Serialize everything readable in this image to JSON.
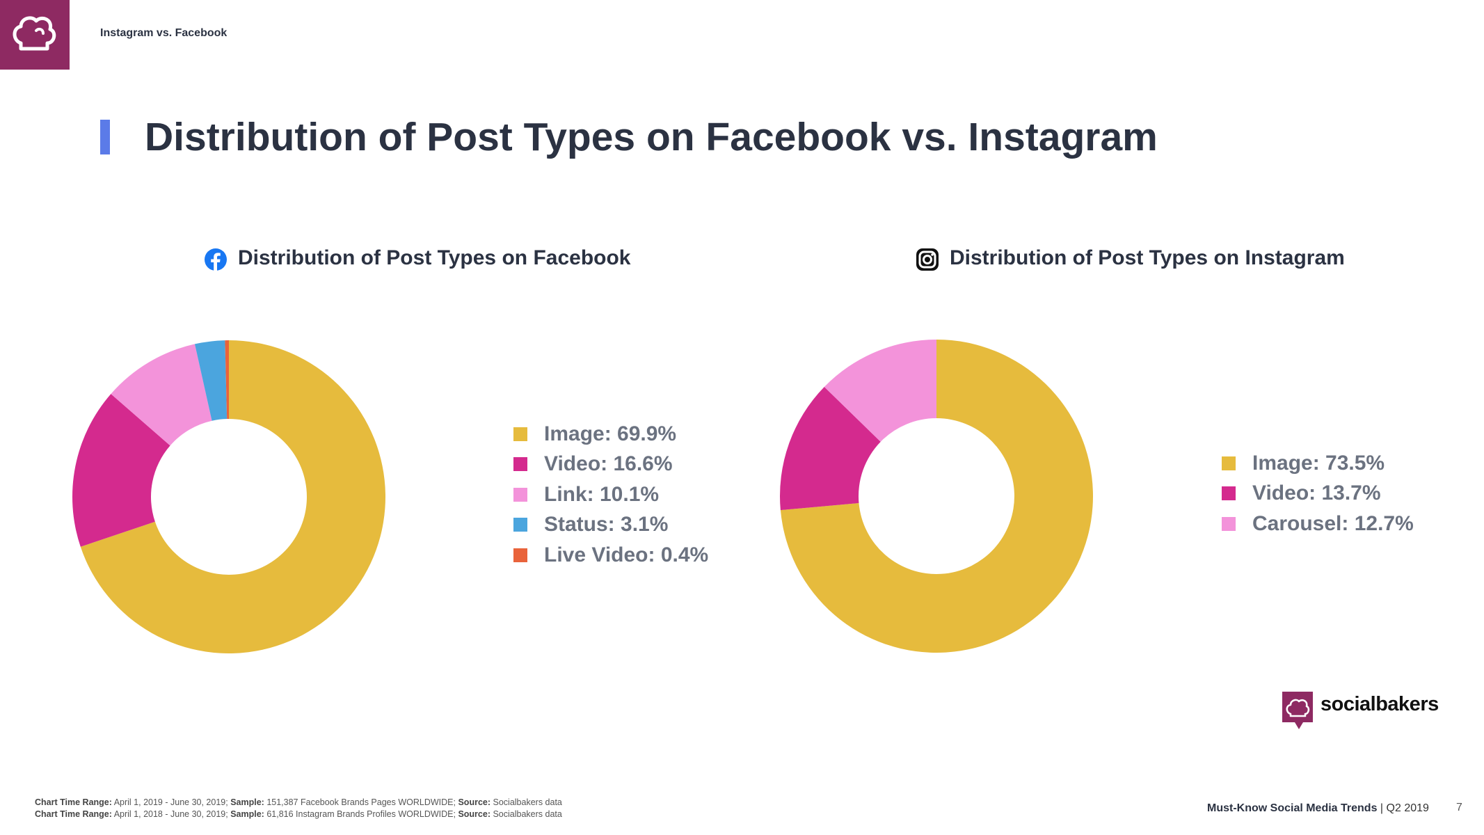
{
  "header": {
    "section_label": "Instagram vs. Facebook"
  },
  "page_title": "Distribution of Post Types on Facebook vs. Instagram",
  "chart_data": [
    {
      "type": "pie",
      "title": "Distribution of Post Types on Facebook",
      "icon": "facebook-icon",
      "categories": [
        "Image",
        "Video",
        "Link",
        "Status",
        "Live Video"
      ],
      "values": [
        69.9,
        16.6,
        10.1,
        3.1,
        0.4
      ],
      "colors": [
        "#e6bb3d",
        "#d42a8e",
        "#f393da",
        "#4ba5de",
        "#e9633b"
      ],
      "legend": [
        "Image: 69.9%",
        "Video: 16.6%",
        "Link: 10.1%",
        "Status: 3.1%",
        "Live Video: 0.4%"
      ],
      "legend_position": "right"
    },
    {
      "type": "pie",
      "title": "Distribution of Post Types on Instagram",
      "icon": "instagram-icon",
      "categories": [
        "Image",
        "Video",
        "Carousel"
      ],
      "values": [
        73.5,
        13.7,
        12.7
      ],
      "colors": [
        "#e6bb3d",
        "#d42a8e",
        "#f393da"
      ],
      "legend": [
        "Image: 73.5%",
        "Video: 13.7%",
        "Carousel: 12.7%"
      ],
      "legend_position": "right"
    }
  ],
  "brand": {
    "name": "socialbakers"
  },
  "footnotes": [
    {
      "range_label": "Chart Time Range:",
      "range": "April 1, 2019 - June 30, 2019;",
      "sample_label": "Sample:",
      "sample": "151,387 Facebook Brands Pages WORLDWIDE;",
      "source_label": "Source:",
      "source": "Socialbakers data"
    },
    {
      "range_label": "Chart Time Range:",
      "range": "April 1, 2018 - June 30, 2019;",
      "sample_label": "Sample:",
      "sample": "61,816 Instagram Brands Profiles WORLDWIDE;",
      "source_label": "Source:",
      "source": "Socialbakers data"
    }
  ],
  "footer": {
    "report_title": "Must-Know Social Media Trends",
    "separator": " | ",
    "period": "Q2 2019",
    "page_number": "7"
  },
  "colors": {
    "brand": "#8e2a62",
    "accent": "#5b7be8",
    "text": "#2b3242"
  }
}
